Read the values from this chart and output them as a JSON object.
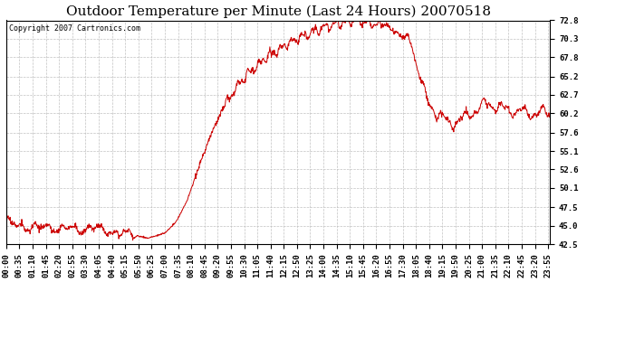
{
  "title": "Outdoor Temperature per Minute (Last 24 Hours) 20070518",
  "copyright_text": "Copyright 2007 Cartronics.com",
  "line_color": "#cc0000",
  "background_color": "#ffffff",
  "plot_bg_color": "#ffffff",
  "grid_color": "#bbbbbb",
  "yticks": [
    42.5,
    45.0,
    47.5,
    50.1,
    52.6,
    55.1,
    57.6,
    60.2,
    62.7,
    65.2,
    67.8,
    70.3,
    72.8
  ],
  "ylim": [
    42.5,
    72.8
  ],
  "title_fontsize": 11,
  "tick_fontsize": 6.5,
  "copyright_fontsize": 6,
  "xtick_labels": [
    "00:00",
    "00:35",
    "01:10",
    "01:45",
    "02:20",
    "02:55",
    "03:30",
    "04:05",
    "04:40",
    "05:15",
    "05:50",
    "06:25",
    "07:00",
    "07:35",
    "08:10",
    "08:45",
    "09:20",
    "09:55",
    "10:30",
    "11:05",
    "11:40",
    "12:15",
    "12:50",
    "13:25",
    "14:00",
    "14:35",
    "15:10",
    "15:45",
    "16:20",
    "16:55",
    "17:30",
    "18:05",
    "18:40",
    "19:15",
    "19:50",
    "20:25",
    "21:00",
    "21:35",
    "22:10",
    "22:45",
    "23:20",
    "23:55"
  ],
  "key_times": [
    0,
    20,
    50,
    80,
    110,
    140,
    170,
    200,
    230,
    260,
    290,
    315,
    330,
    345,
    360,
    375,
    390,
    420,
    450,
    480,
    510,
    540,
    570,
    600,
    630,
    660,
    690,
    720,
    750,
    780,
    810,
    840,
    870,
    900,
    930,
    960,
    990,
    1010,
    1020,
    1050,
    1065,
    1080,
    1095,
    1110,
    1130,
    1140,
    1160,
    1180,
    1200,
    1220,
    1240,
    1260,
    1280,
    1300,
    1320,
    1350,
    1380,
    1410,
    1440
  ],
  "key_values": [
    45.2,
    45.4,
    44.8,
    44.6,
    44.9,
    44.5,
    44.7,
    44.4,
    44.8,
    44.3,
    44.2,
    43.9,
    43.8,
    43.6,
    43.5,
    43.3,
    43.5,
    44.0,
    45.5,
    48.5,
    53.0,
    57.0,
    60.5,
    63.0,
    65.0,
    66.5,
    67.8,
    68.8,
    69.8,
    70.5,
    71.2,
    71.8,
    72.3,
    72.6,
    72.8,
    72.5,
    72.0,
    72.3,
    71.5,
    70.5,
    70.8,
    68.0,
    65.0,
    62.5,
    61.0,
    60.0,
    59.5,
    58.8,
    59.2,
    59.8,
    60.5,
    61.2,
    61.5,
    61.0,
    60.8,
    60.5,
    60.2,
    60.3,
    60.2
  ]
}
